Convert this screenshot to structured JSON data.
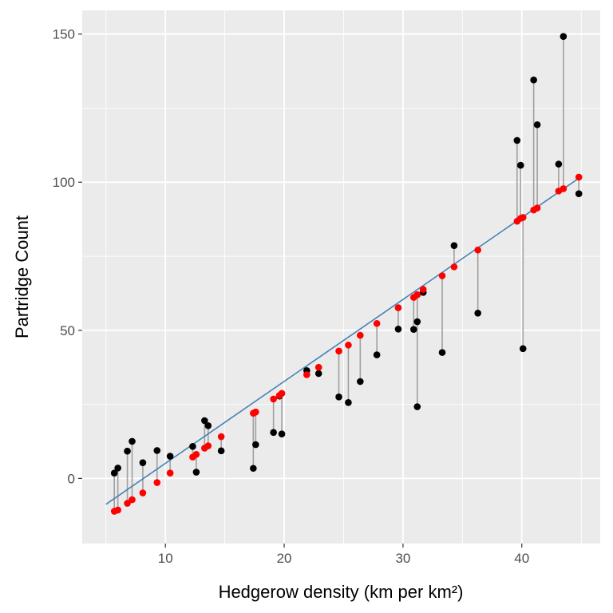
{
  "chart_data": {
    "type": "scatter",
    "title": "",
    "xlabel": "Hedgerow density (km per km²)",
    "ylabel": "Partridge Count",
    "xlim": [
      3.0,
      46.6
    ],
    "ylim": [
      -22.0,
      158.0
    ],
    "x_ticks": [
      10,
      20,
      30,
      40
    ],
    "y_ticks": [
      0,
      50,
      100,
      150
    ],
    "grid": true,
    "legend": "none",
    "fit_line": {
      "intercept": -22.58,
      "slope": 2.766,
      "x_range": [
        5.0,
        44.8
      ]
    },
    "series": [
      {
        "kind": "observed",
        "points": [
          {
            "x": 5.7,
            "y": 1.8
          },
          {
            "x": 6.0,
            "y": 3.5
          },
          {
            "x": 6.8,
            "y": 9.2
          },
          {
            "x": 7.2,
            "y": 12.5
          },
          {
            "x": 8.1,
            "y": 5.3
          },
          {
            "x": 9.3,
            "y": 9.4
          },
          {
            "x": 10.4,
            "y": 7.5
          },
          {
            "x": 12.3,
            "y": 10.8
          },
          {
            "x": 12.6,
            "y": 2.1
          },
          {
            "x": 13.3,
            "y": 19.5
          },
          {
            "x": 13.6,
            "y": 17.8
          },
          {
            "x": 14.7,
            "y": 9.3
          },
          {
            "x": 17.4,
            "y": 3.4
          },
          {
            "x": 17.6,
            "y": 11.4
          },
          {
            "x": 19.1,
            "y": 15.5
          },
          {
            "x": 19.6,
            "y": 27.8
          },
          {
            "x": 19.8,
            "y": 15.0
          },
          {
            "x": 21.9,
            "y": 36.4
          },
          {
            "x": 22.9,
            "y": 35.4
          },
          {
            "x": 24.6,
            "y": 27.5
          },
          {
            "x": 25.4,
            "y": 25.6
          },
          {
            "x": 26.4,
            "y": 32.7
          },
          {
            "x": 27.8,
            "y": 41.7
          },
          {
            "x": 29.6,
            "y": 50.4
          },
          {
            "x": 30.9,
            "y": 50.3
          },
          {
            "x": 31.2,
            "y": 52.9
          },
          {
            "x": 31.2,
            "y": 24.2
          },
          {
            "x": 31.7,
            "y": 62.8
          },
          {
            "x": 33.3,
            "y": 42.5
          },
          {
            "x": 34.3,
            "y": 78.6
          },
          {
            "x": 36.3,
            "y": 55.8
          },
          {
            "x": 39.6,
            "y": 114.1
          },
          {
            "x": 39.9,
            "y": 105.7
          },
          {
            "x": 40.1,
            "y": 43.8
          },
          {
            "x": 41.0,
            "y": 134.5
          },
          {
            "x": 41.3,
            "y": 119.4
          },
          {
            "x": 43.1,
            "y": 106.1
          },
          {
            "x": 43.5,
            "y": 149.2
          },
          {
            "x": 44.8,
            "y": 96.1
          }
        ]
      },
      {
        "kind": "fitted",
        "points": [
          {
            "x": 5.7,
            "y": -11.1
          },
          {
            "x": 6.0,
            "y": -10.7
          },
          {
            "x": 6.8,
            "y": -8.4
          },
          {
            "x": 7.2,
            "y": -7.2
          },
          {
            "x": 8.1,
            "y": -4.9
          },
          {
            "x": 9.3,
            "y": -1.4
          },
          {
            "x": 10.4,
            "y": 1.8
          },
          {
            "x": 12.3,
            "y": 7.2
          },
          {
            "x": 12.6,
            "y": 8.1
          },
          {
            "x": 13.3,
            "y": 10.2
          },
          {
            "x": 13.6,
            "y": 11.0
          },
          {
            "x": 14.7,
            "y": 14.1
          },
          {
            "x": 17.4,
            "y": 22.0
          },
          {
            "x": 17.6,
            "y": 22.4
          },
          {
            "x": 19.1,
            "y": 26.8
          },
          {
            "x": 19.6,
            "y": 28.0
          },
          {
            "x": 19.8,
            "y": 28.7
          },
          {
            "x": 21.9,
            "y": 35.0
          },
          {
            "x": 22.9,
            "y": 37.5
          },
          {
            "x": 24.6,
            "y": 43.0
          },
          {
            "x": 25.4,
            "y": 45.0
          },
          {
            "x": 26.4,
            "y": 48.3
          },
          {
            "x": 27.8,
            "y": 52.3
          },
          {
            "x": 29.6,
            "y": 57.6
          },
          {
            "x": 30.9,
            "y": 61.1
          },
          {
            "x": 31.2,
            "y": 62.0
          },
          {
            "x": 31.2,
            "y": 62.0
          },
          {
            "x": 31.7,
            "y": 63.8
          },
          {
            "x": 33.3,
            "y": 68.4
          },
          {
            "x": 34.3,
            "y": 71.4
          },
          {
            "x": 36.3,
            "y": 77.1
          },
          {
            "x": 39.6,
            "y": 86.8
          },
          {
            "x": 39.9,
            "y": 87.8
          },
          {
            "x": 40.1,
            "y": 88.1
          },
          {
            "x": 41.0,
            "y": 90.6
          },
          {
            "x": 41.3,
            "y": 91.3
          },
          {
            "x": 43.1,
            "y": 97.0
          },
          {
            "x": 43.5,
            "y": 97.8
          },
          {
            "x": 44.8,
            "y": 101.7
          }
        ]
      }
    ]
  },
  "colors": {
    "panel": "#ebebeb",
    "grid": "#ffffff",
    "observed": "#000000",
    "fitted": "#ff0000",
    "fit_line": "#4682b4",
    "residual": "#a0a0a0",
    "tick": "#333333",
    "tick_text": "#4d4d4d"
  }
}
